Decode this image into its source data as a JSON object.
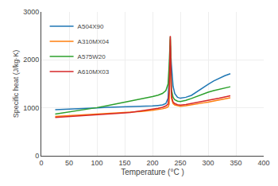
{
  "chart_data": {
    "type": "line",
    "xlabel": "Temperature (°C )",
    "ylabel": "Specific heat (J/kg·K)",
    "xlim": [
      0,
      400
    ],
    "ylim": [
      0,
      3000
    ],
    "xticks": [
      0,
      50,
      100,
      150,
      200,
      250,
      300,
      350,
      400
    ],
    "yticks": [
      0,
      1000,
      2000,
      3000
    ],
    "grid": true,
    "legend": "upper left",
    "x": [
      25,
      40,
      60,
      80,
      100,
      120,
      140,
      160,
      180,
      200,
      210,
      218,
      224,
      228,
      230,
      232,
      234,
      237,
      240,
      245,
      250,
      260,
      270,
      280,
      290,
      300,
      310,
      320,
      330,
      340
    ],
    "series": [
      {
        "name": "A504X90",
        "values": [
          960,
          970,
          980,
          990,
          1000,
          1010,
          1015,
          1020,
          1030,
          1040,
          1050,
          1060,
          1090,
          1200,
          1700,
          2300,
          1900,
          1450,
          1300,
          1220,
          1200,
          1220,
          1260,
          1340,
          1410,
          1490,
          1560,
          1620,
          1670,
          1710
        ]
      },
      {
        "name": "A310MX04",
        "values": [
          820,
          830,
          840,
          850,
          865,
          875,
          890,
          905,
          925,
          950,
          965,
          980,
          1000,
          1020,
          1080,
          2430,
          1200,
          1090,
          1060,
          1040,
          1030,
          1045,
          1060,
          1080,
          1100,
          1120,
          1140,
          1165,
          1185,
          1210
        ]
      },
      {
        "name": "A575W20",
        "values": [
          870,
          895,
          930,
          965,
          1005,
          1050,
          1095,
          1140,
          1185,
          1235,
          1265,
          1300,
          1360,
          1500,
          1900,
          2480,
          1380,
          1220,
          1170,
          1140,
          1130,
          1155,
          1195,
          1240,
          1285,
          1325,
          1360,
          1390,
          1415,
          1440
        ]
      },
      {
        "name": "A610MX03",
        "values": [
          800,
          810,
          820,
          835,
          850,
          865,
          885,
          905,
          935,
          970,
          990,
          1010,
          1040,
          1080,
          1350,
          2500,
          1250,
          1120,
          1090,
          1065,
          1055,
          1070,
          1090,
          1110,
          1135,
          1155,
          1180,
          1200,
          1225,
          1250
        ]
      }
    ]
  }
}
